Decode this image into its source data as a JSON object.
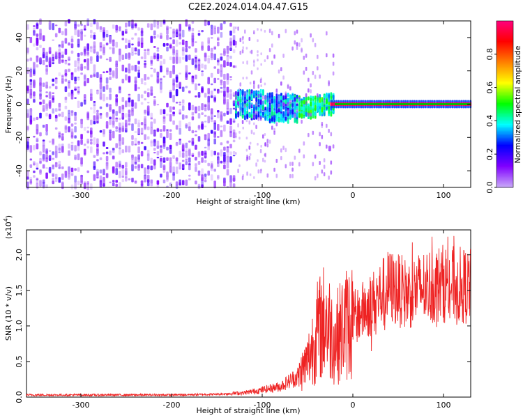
{
  "title": "C2E2.2024.014.04.47.G15",
  "chart_data": [
    {
      "type": "heatmap",
      "xlabel": "Height of straight line (km)",
      "ylabel": "Frequency (Hz)",
      "xlim": [
        -360,
        130
      ],
      "ylim": [
        -50,
        50
      ],
      "x_ticks": [
        -300,
        -200,
        -100,
        0,
        100
      ],
      "y_ticks": [
        -40,
        -20,
        0,
        20,
        40
      ],
      "colorbar": {
        "label": "Normalized spectral amplitude",
        "range": [
          0,
          1
        ],
        "ticks": [
          "0.0",
          "0.2",
          "0.4",
          "0.6",
          "0.8"
        ],
        "tick_values": [
          0,
          0.2,
          0.4,
          0.6,
          0.8
        ],
        "colors": [
          "#ffffff",
          "#c8a8f8",
          "#8000ff",
          "#0000ff",
          "#00ffff",
          "#00ff00",
          "#ffff00",
          "#ff8000",
          "#ff0000",
          "#ff0080"
        ]
      },
      "features": [
        {
          "x_range": [
            -360,
            -140
          ],
          "y_spread": 50,
          "amplitude": 0.15
        },
        {
          "x_range": [
            -140,
            -60
          ],
          "y_spread": 8,
          "amplitude": 0.35
        },
        {
          "x_range": [
            -60,
            -20
          ],
          "y_spread": 6,
          "amplitude": 0.45
        },
        {
          "x_range": [
            -20,
            130
          ],
          "y_center": 0,
          "amplitude": 0.9
        }
      ]
    },
    {
      "type": "line",
      "xlabel": "Height of straight line (km)",
      "ylabel": "SNR (10 * v/v)",
      "y_scale_label": "(x10",
      "y_scale_exp": "4",
      "y_scale_close": ")",
      "xlim": [
        -360,
        130
      ],
      "ylim": [
        0,
        2.35
      ],
      "x_ticks": [
        -300,
        -200,
        -100,
        0,
        100
      ],
      "y_ticks": [
        "0.0",
        "0.5",
        "1.0",
        "1.5",
        "2.0"
      ],
      "y_tick_values": [
        0,
        0.5,
        1.0,
        1.5,
        2.0
      ],
      "color": "#ee2222",
      "envelope": [
        {
          "x": -360,
          "y": 0.03
        },
        {
          "x": -200,
          "y": 0.03
        },
        {
          "x": -150,
          "y": 0.04
        },
        {
          "x": -120,
          "y": 0.06
        },
        {
          "x": -100,
          "y": 0.1
        },
        {
          "x": -80,
          "y": 0.15
        },
        {
          "x": -60,
          "y": 0.3
        },
        {
          "x": -50,
          "y": 0.5
        },
        {
          "x": -40,
          "y": 0.9
        },
        {
          "x": -30,
          "y": 1.1
        },
        {
          "x": -20,
          "y": 0.8
        },
        {
          "x": -10,
          "y": 1.0
        },
        {
          "x": 0,
          "y": 1.1
        },
        {
          "x": 20,
          "y": 1.3
        },
        {
          "x": 40,
          "y": 1.55
        },
        {
          "x": 60,
          "y": 1.45
        },
        {
          "x": 80,
          "y": 1.55
        },
        {
          "x": 100,
          "y": 1.6
        },
        {
          "x": 130,
          "y": 1.55
        }
      ]
    }
  ]
}
